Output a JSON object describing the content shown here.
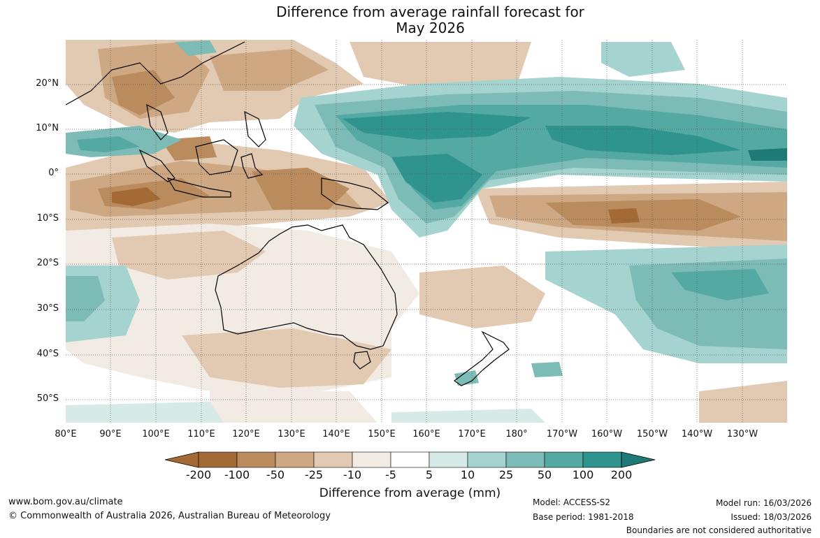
{
  "title": {
    "line1": "Difference from average rainfall forecast for",
    "line2": "May 2026"
  },
  "map": {
    "lat_labels": [
      "20°N",
      "10°N",
      "0°",
      "10°S",
      "20°S",
      "30°S",
      "40°S",
      "50°S"
    ],
    "lon_labels": [
      "80°E",
      "90°E",
      "100°E",
      "110°E",
      "120°E",
      "130°E",
      "140°E",
      "150°E",
      "160°E",
      "170°E",
      "180°",
      "170°W",
      "160°W",
      "150°W",
      "140°W",
      "130°W"
    ]
  },
  "legend": {
    "ticks": [
      "-200",
      "-100",
      "-50",
      "-25",
      "-10",
      "-5",
      "5",
      "10",
      "25",
      "50",
      "100",
      "200"
    ],
    "colors": [
      "#a36a35",
      "#b98b5d",
      "#cda882",
      "#e1c9b2",
      "#f2ebe4",
      "#ffffff",
      "#d6eae8",
      "#a5d3cf",
      "#7cbbb6",
      "#55a9a3",
      "#2f938e",
      "#1e7a76"
    ],
    "title": "Difference from average (mm)"
  },
  "footer": {
    "website": "www.bom.gov.au/climate",
    "copyright": "© Commonwealth of Australia 2026, Australian Bureau of Meteorology",
    "model": "Model: ACCESS-S2",
    "base_period": "Base period: 1981-2018",
    "model_run": "Model run: 16/03/2026",
    "issued": "Issued: 18/03/2026",
    "disclaimer": "Boundaries are not considered authoritative"
  }
}
